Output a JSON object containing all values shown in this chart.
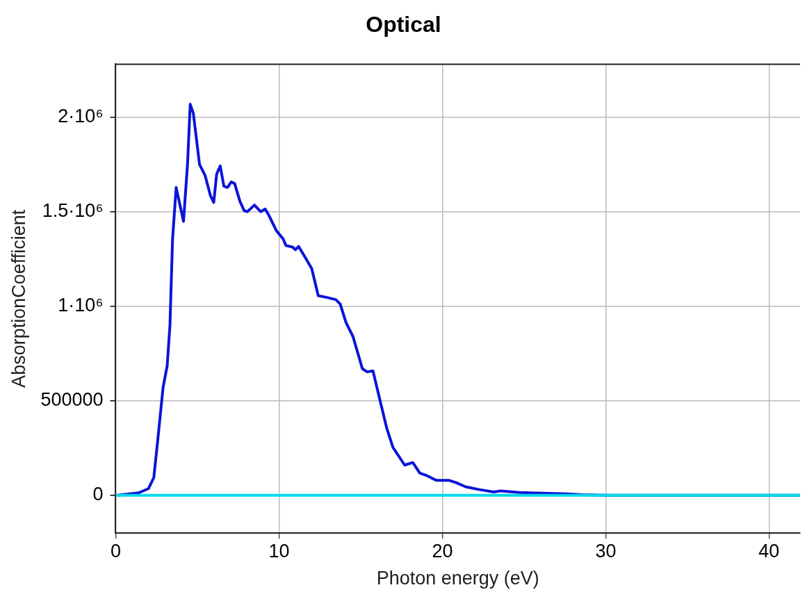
{
  "chart_data": {
    "type": "line",
    "title": "Optical",
    "xlabel": "Photon energy (eV)",
    "ylabel": "AbsorptionCoefficient",
    "xlim": [
      0,
      41.9
    ],
    "xticks": [
      0,
      10,
      20,
      30,
      40
    ],
    "ylim": [
      -200000,
      2280000
    ],
    "yticks": [
      0,
      500000,
      {
        "value": 1000000,
        "label": "1·10⁶"
      },
      {
        "value": 1500000,
        "label": "1.5·10⁶"
      },
      {
        "value": 2000000,
        "label": "2·10⁶"
      }
    ],
    "grid": true,
    "legend": false,
    "marker": "none",
    "line_style": "solid",
    "series": [
      {
        "color": "#00d8e8",
        "x": [
          0,
          41.9
        ],
        "values": [
          0,
          0
        ]
      },
      {
        "color": "#0a14d8",
        "x": [
          0.1,
          1.4,
          2.0,
          2.33,
          2.58,
          2.9,
          3.15,
          3.32,
          3.48,
          3.7,
          4.15,
          4.4,
          4.56,
          4.75,
          5.13,
          5.47,
          5.8,
          6.0,
          6.18,
          6.4,
          6.62,
          6.84,
          7.07,
          7.28,
          7.6,
          7.86,
          8.06,
          8.49,
          8.88,
          9.15,
          9.35,
          9.84,
          10.25,
          10.42,
          10.83,
          11.0,
          11.2,
          11.66,
          12.0,
          12.4,
          12.8,
          13.47,
          13.74,
          14.1,
          14.53,
          15.1,
          15.39,
          15.75,
          16.18,
          16.6,
          16.97,
          17.69,
          18.19,
          18.62,
          19.05,
          19.63,
          20.42,
          20.85,
          21.42,
          22.28,
          23.15,
          23.58,
          24.73,
          26.2,
          27.6,
          28.6,
          30,
          41.9
        ],
        "values": [
          0,
          13000,
          35000,
          93000,
          298000,
          571000,
          685000,
          900000,
          1356000,
          1628000,
          1449000,
          1757000,
          2068000,
          2021000,
          1750000,
          1692000,
          1585000,
          1549000,
          1699000,
          1742000,
          1635000,
          1628000,
          1657000,
          1649000,
          1556000,
          1506000,
          1500000,
          1535000,
          1500000,
          1514000,
          1485000,
          1399000,
          1356000,
          1321000,
          1313000,
          1299000,
          1316000,
          1250000,
          1199000,
          1056000,
          1049000,
          1035000,
          1012000,
          914000,
          839000,
          670000,
          653000,
          658000,
          503000,
          353000,
          254000,
          160000,
          173000,
          117000,
          104000,
          79000,
          79000,
          67000,
          45000,
          30000,
          17500,
          23500,
          15000,
          11000,
          7500,
          2600,
          0,
          0
        ]
      }
    ]
  }
}
